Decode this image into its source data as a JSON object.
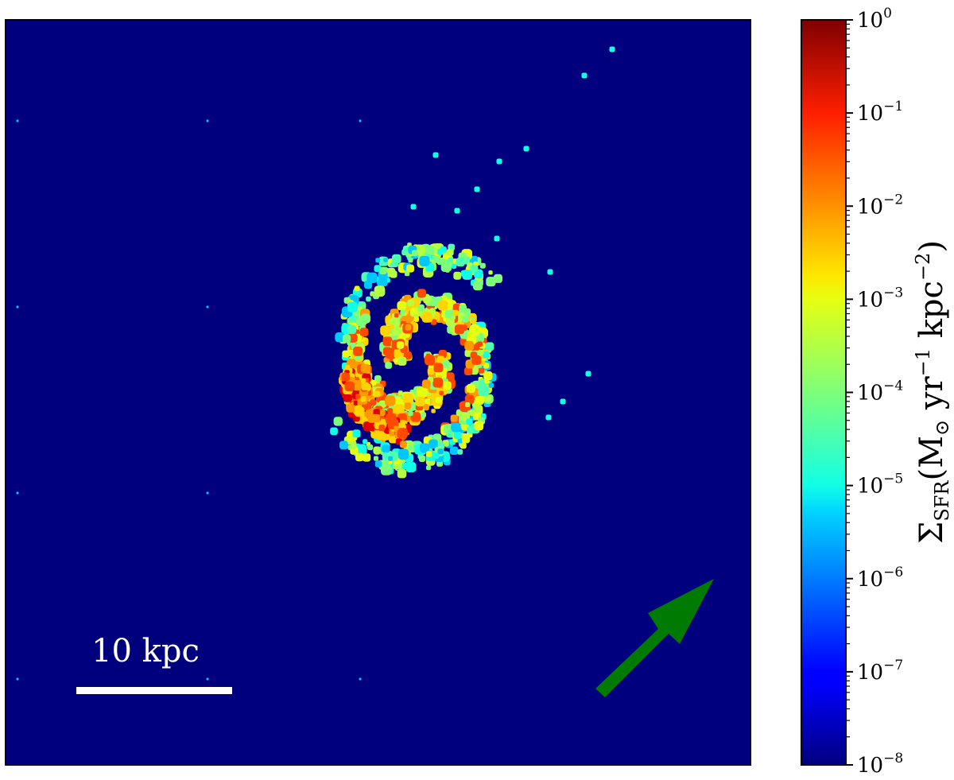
{
  "chart_data": {
    "type": "heatmap",
    "title": "",
    "colorbar": {
      "label_symbol": "Σ",
      "label_subscript": "SFR",
      "label_units_prefix": "(M",
      "label_units_sun": "⊙",
      "label_units_mid": " yr",
      "label_units_exp1": "−1",
      "label_units_mid2": " kpc",
      "label_units_exp2": "−2",
      "label_units_suffix": ")",
      "scale": "log",
      "colormap": "jet",
      "range": [
        1e-08,
        1
      ],
      "ticks": [
        {
          "base": "10",
          "exp": "0"
        },
        {
          "base": "10",
          "exp": "−1"
        },
        {
          "base": "10",
          "exp": "−2"
        },
        {
          "base": "10",
          "exp": "−3"
        },
        {
          "base": "10",
          "exp": "−4"
        },
        {
          "base": "10",
          "exp": "−5"
        },
        {
          "base": "10",
          "exp": "−6"
        },
        {
          "base": "10",
          "exp": "−7"
        },
        {
          "base": "10",
          "exp": "−8"
        }
      ]
    },
    "background_color": "#00007f",
    "scale_bar_label": "10 kpc",
    "arrow_color": "#007a00",
    "axes_ticks": false
  }
}
